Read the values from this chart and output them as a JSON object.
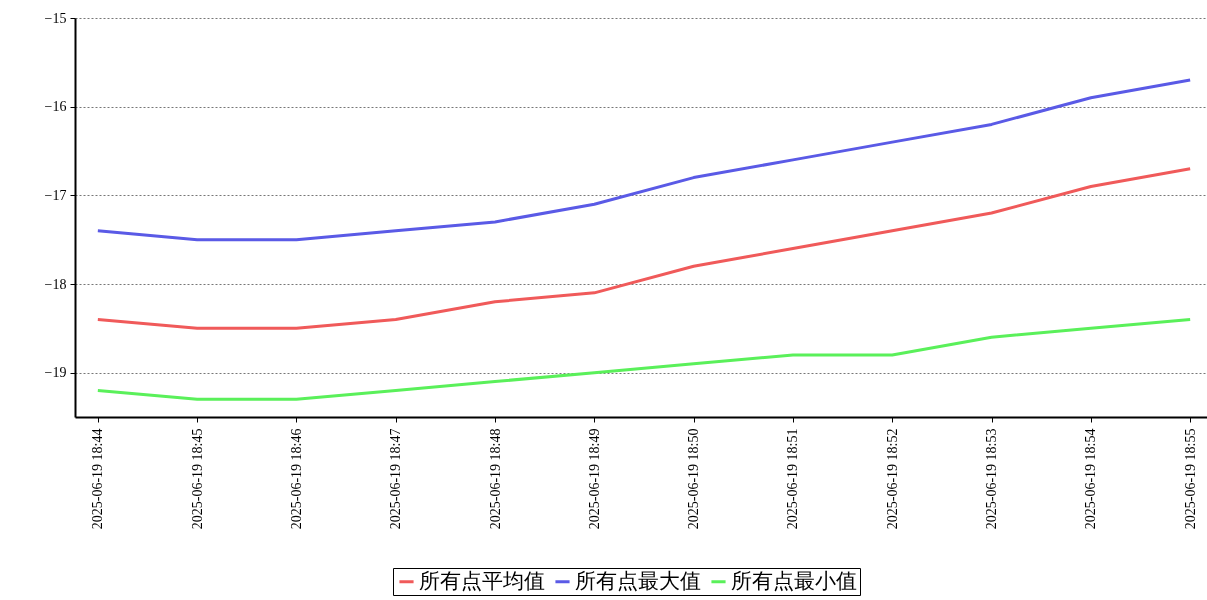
{
  "chart_data": {
    "type": "line",
    "categories": [
      "2025-06-19 18:44",
      "2025-06-19 18:45",
      "2025-06-19 18:46",
      "2025-06-19 18:47",
      "2025-06-19 18:48",
      "2025-06-19 18:49",
      "2025-06-19 18:50",
      "2025-06-19 18:51",
      "2025-06-19 18:52",
      "2025-06-19 18:53",
      "2025-06-19 18:54",
      "2025-06-19 18:55"
    ],
    "series": [
      {
        "name": "所有点平均值",
        "color": "#f05a5a",
        "values": [
          -18.4,
          -18.5,
          -18.5,
          -18.4,
          -18.2,
          -18.1,
          -17.8,
          -17.6,
          -17.4,
          -17.2,
          -16.9,
          -16.7
        ]
      },
      {
        "name": "所有点最大值",
        "color": "#5a5ae6",
        "values": [
          -17.4,
          -17.5,
          -17.5,
          -17.4,
          -17.3,
          -17.1,
          -16.8,
          -16.6,
          -16.4,
          -16.2,
          -15.9,
          -15.7
        ]
      },
      {
        "name": "所有点最小值",
        "color": "#5af05a",
        "values": [
          -19.2,
          -19.3,
          -19.3,
          -19.2,
          -19.1,
          -19.0,
          -18.9,
          -18.8,
          -18.8,
          -18.6,
          -18.5,
          -18.4
        ]
      }
    ],
    "ylim": [
      -19.5,
      -15
    ],
    "yticks": [
      -19,
      -18,
      -17,
      -16,
      -15
    ],
    "grid": "y",
    "legend": "bottom",
    "line_style": "solid"
  }
}
